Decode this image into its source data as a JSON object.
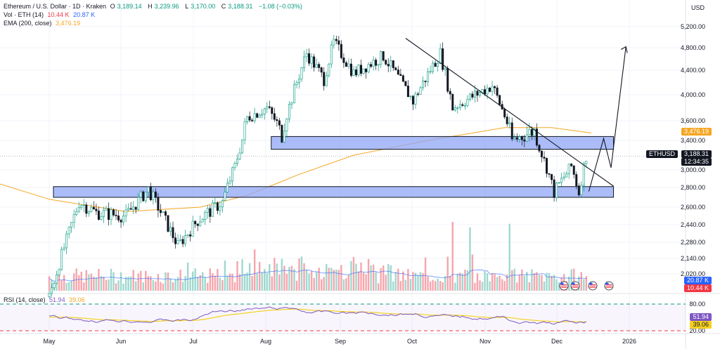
{
  "legend": {
    "symbol": "Ethereum / U.S. Dollar · 1D · Kraken",
    "o_label": "O",
    "o_value": "3,189.14",
    "h_label": "H",
    "h_value": "3,239.96",
    "l_label": "L",
    "l_value": "3,170.00",
    "c_label": "C",
    "c_value": "3,188.31",
    "change": "−1.08 (−0.03%)",
    "vol_label": "Vol · ETH (14)",
    "vol_value1": "10.44 K",
    "vol_value2": "20.87 K",
    "ema_label": "EMA (200, close)",
    "ema_value": "3,476.19",
    "rsi_label": "RSI (14, close)",
    "rsi_value": "51.94",
    "rsi_value2": "39.06"
  },
  "currency": "USD",
  "colors": {
    "up": "#089981",
    "down": "#f23645",
    "ema": "#f5a623",
    "zone": "#8fa6f5",
    "rsi": "#7e57c2",
    "rsi_ma": "#f5d020"
  },
  "price_tags": {
    "ema": "3,476.19",
    "symbol": "ETHUSD",
    "last": "3,188.31",
    "countdown": "12:34:35",
    "vol_ma": "20.87 K",
    "vol": "10.44 K",
    "rsi": "51.94",
    "rsi_ma": "39.06",
    "rsi_upper": "80.00",
    "rsi_lower": "20.00"
  },
  "chart_data": {
    "type": "candlestick",
    "x_labels": [
      "May",
      "Jun",
      "Jul",
      "Aug",
      "Sep",
      "Oct",
      "Nov",
      "Dec",
      "2026"
    ],
    "y_ticks": [
      2020,
      2140,
      2280,
      2440,
      2600,
      2800,
      3000,
      3400,
      3600,
      4000,
      4400,
      4800,
      5200
    ],
    "y_tick_labels": [
      "2,020.00",
      "2,140.00",
      "2,280.00",
      "2,440.00",
      "2,600.00",
      "2,800.00",
      "3,000.00",
      "3,400.00",
      "3,600.00",
      "4,000.00",
      "4,400.00",
      "4,800.00",
      "5,200.00"
    ],
    "price_series": [
      [
        "2025-05-01",
        1840
      ],
      [
        "2025-05-08",
        2300
      ],
      [
        "2025-05-13",
        2650
      ],
      [
        "2025-05-20",
        2550
      ],
      [
        "2025-06-01",
        2520
      ],
      [
        "2025-06-10",
        2780
      ],
      [
        "2025-06-22",
        2250
      ],
      [
        "2025-06-30",
        2480
      ],
      [
        "2025-07-10",
        2650
      ],
      [
        "2025-07-15",
        3050
      ],
      [
        "2025-07-20",
        3650
      ],
      [
        "2025-07-28",
        3800
      ],
      [
        "2025-08-03",
        3450
      ],
      [
        "2025-08-13",
        4700
      ],
      [
        "2025-08-20",
        4250
      ],
      [
        "2025-08-24",
        4900
      ],
      [
        "2025-09-01",
        4350
      ],
      [
        "2025-09-13",
        4650
      ],
      [
        "2025-09-25",
        3900
      ],
      [
        "2025-10-06",
        4700
      ],
      [
        "2025-10-11",
        3800
      ],
      [
        "2025-10-27",
        4150
      ],
      [
        "2025-11-04",
        3400
      ],
      [
        "2025-11-13",
        3500
      ],
      [
        "2025-11-21",
        2750
      ],
      [
        "2025-11-28",
        3050
      ],
      [
        "2025-12-01",
        2750
      ],
      [
        "2025-12-04",
        3188
      ]
    ],
    "ema200": [
      [
        "2025-05-01",
        2680
      ],
      [
        "2025-06-01",
        2560
      ],
      [
        "2025-07-01",
        2600
      ],
      [
        "2025-07-20",
        2720
      ],
      [
        "2025-08-10",
        2950
      ],
      [
        "2025-09-01",
        3200
      ],
      [
        "2025-10-01",
        3400
      ],
      [
        "2025-11-01",
        3530
      ],
      [
        "2025-11-20",
        3530
      ],
      [
        "2025-12-06",
        3476
      ]
    ],
    "zones": [
      {
        "from": "2025-05-01",
        "to": "2025-12-15",
        "low": 2700,
        "high": 2810
      },
      {
        "from": "2025-07-28",
        "to": "2025-12-15",
        "low": 3280,
        "high": 3440
      }
    ],
    "trendline": [
      [
        "2025-09-22",
        4980
      ],
      [
        "2025-12-15",
        2815
      ]
    ],
    "projection": [
      [
        "2025-12-05",
        2760
      ],
      [
        "2025-12-11",
        3420
      ],
      [
        "2025-12-14",
        3030
      ],
      [
        "2025-12-20",
        4820
      ]
    ],
    "last_price": 3188.31,
    "rsi_ticks": [
      80,
      20
    ],
    "event_flags": [
      "US",
      "US",
      "US",
      "US"
    ]
  }
}
